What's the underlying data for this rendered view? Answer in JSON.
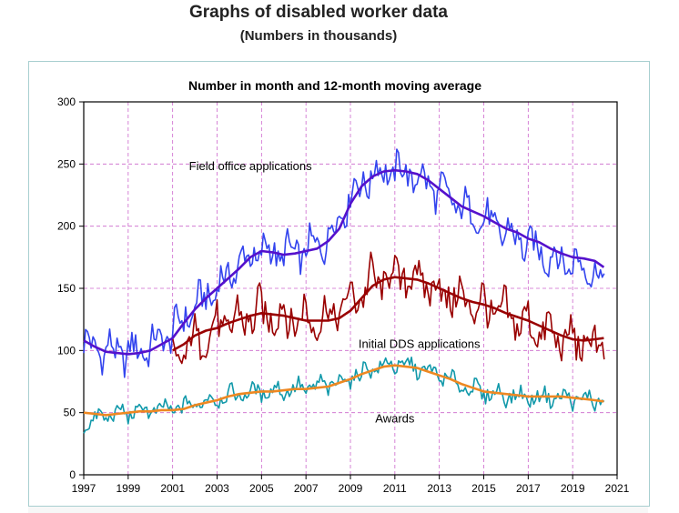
{
  "page": {
    "title": "Graphs of disabled worker data",
    "subtitle": "(Numbers in thousands)"
  },
  "chart_data": {
    "type": "line",
    "title": "Number in month and 12-month moving average",
    "xlabel": "",
    "ylabel": "",
    "xlim": [
      1997,
      2021
    ],
    "ylim": [
      0,
      300
    ],
    "x_ticks": [
      "1997",
      "1999",
      "2001",
      "2003",
      "2005",
      "2007",
      "2009",
      "2011",
      "2013",
      "2015",
      "2017",
      "2019",
      "2021"
    ],
    "y_ticks": [
      "0",
      "50",
      "100",
      "150",
      "200",
      "250",
      "300"
    ],
    "grid": true,
    "grid_color": "#cc66cc",
    "annotations": [
      {
        "text": "Field office applications",
        "x": 2004.5,
        "y": 245
      },
      {
        "text": "Initial DDS applications",
        "x": 2012.1,
        "y": 102
      },
      {
        "text": "Awards",
        "x": 2011.0,
        "y": 42
      }
    ],
    "series": [
      {
        "label": "Field office applications (monthly)",
        "color": "#3344ee",
        "style": "monthly",
        "x": [
          1997.0,
          1998.0,
          1999.0,
          2000.0,
          2001.0,
          2002.0,
          2003.0,
          2004.0,
          2005.0,
          2006.0,
          2007.0,
          2008.0,
          2009.0,
          2010.0,
          2011.0,
          2012.0,
          2013.0,
          2014.0,
          2015.0,
          2016.0,
          2017.0,
          2018.0,
          2019.0,
          2020.0,
          2020.4
        ],
        "y": [
          105,
          100,
          98,
          103,
          115,
          135,
          150,
          170,
          180,
          178,
          180,
          190,
          225,
          242,
          245,
          240,
          228,
          215,
          205,
          195,
          185,
          175,
          170,
          165,
          150
        ],
        "amplitude": 14
      },
      {
        "label": "Field office applications (12-month moving average)",
        "color": "#5511cc",
        "style": "average",
        "x": [
          1997.0,
          1997.5,
          1998.0,
          1998.5,
          1999.0,
          1999.5,
          2000.0,
          2000.5,
          2001.0,
          2001.5,
          2002.0,
          2002.5,
          2003.0,
          2003.5,
          2004.0,
          2004.5,
          2005.0,
          2005.5,
          2006.0,
          2006.5,
          2007.0,
          2007.5,
          2008.0,
          2008.5,
          2009.0,
          2009.5,
          2010.0,
          2010.5,
          2011.0,
          2011.5,
          2012.0,
          2012.5,
          2013.0,
          2013.5,
          2014.0,
          2014.5,
          2015.0,
          2015.5,
          2016.0,
          2016.5,
          2017.0,
          2017.5,
          2018.0,
          2018.5,
          2019.0,
          2019.5,
          2020.0,
          2020.4
        ],
        "y": [
          108,
          103,
          99,
          98,
          97,
          98,
          100,
          105,
          110,
          122,
          133,
          142,
          150,
          158,
          166,
          175,
          180,
          179,
          177,
          178,
          180,
          182,
          188,
          198,
          218,
          232,
          240,
          244,
          245,
          244,
          242,
          237,
          230,
          223,
          216,
          212,
          208,
          203,
          198,
          195,
          190,
          187,
          182,
          178,
          175,
          174,
          172,
          167
        ]
      },
      {
        "label": "Initial DDS applications (monthly)",
        "color": "#990000",
        "style": "monthly",
        "x": [
          2001.0,
          2002.0,
          2003.0,
          2004.0,
          2005.0,
          2006.0,
          2007.0,
          2008.0,
          2009.0,
          2010.0,
          2011.0,
          2012.0,
          2013.0,
          2014.0,
          2015.0,
          2016.0,
          2017.0,
          2018.0,
          2019.0,
          2020.0,
          2020.4
        ],
        "y": [
          90,
          108,
          118,
          125,
          130,
          127,
          125,
          127,
          140,
          155,
          160,
          158,
          148,
          140,
          135,
          128,
          120,
          113,
          107,
          105,
          102
        ],
        "amplitude": 17
      },
      {
        "label": "Initial DDS applications (12-month moving average)",
        "color": "#990000",
        "style": "average",
        "x": [
          2001.0,
          2001.5,
          2002.0,
          2002.5,
          2003.0,
          2003.5,
          2004.0,
          2004.5,
          2005.0,
          2005.5,
          2006.0,
          2006.5,
          2007.0,
          2007.5,
          2008.0,
          2008.5,
          2009.0,
          2009.5,
          2010.0,
          2010.5,
          2011.0,
          2011.5,
          2012.0,
          2012.5,
          2013.0,
          2013.5,
          2014.0,
          2014.5,
          2015.0,
          2015.5,
          2016.0,
          2016.5,
          2017.0,
          2017.5,
          2018.0,
          2018.5,
          2019.0,
          2019.5,
          2020.0,
          2020.4
        ],
        "y": [
          100,
          105,
          112,
          116,
          118,
          122,
          125,
          128,
          130,
          129,
          128,
          126,
          124,
          124,
          124,
          126,
          132,
          142,
          152,
          157,
          159,
          158,
          157,
          154,
          150,
          146,
          142,
          139,
          137,
          134,
          130,
          127,
          124,
          120,
          116,
          112,
          109,
          108,
          109,
          110
        ]
      },
      {
        "label": "Awards (monthly)",
        "color": "#1199aa",
        "style": "monthly",
        "x": [
          1997.0,
          1998.0,
          1999.0,
          2000.0,
          2001.0,
          2002.0,
          2003.0,
          2004.0,
          2005.0,
          2006.0,
          2007.0,
          2008.0,
          2009.0,
          2010.0,
          2011.0,
          2012.0,
          2013.0,
          2014.0,
          2015.0,
          2016.0,
          2017.0,
          2018.0,
          2019.0,
          2020.0,
          2020.4
        ],
        "y": [
          40,
          48,
          50,
          52,
          53,
          57,
          62,
          65,
          67,
          68,
          70,
          72,
          78,
          86,
          89,
          86,
          80,
          72,
          66,
          64,
          62,
          63,
          61,
          60,
          60
        ],
        "amplitude": 7
      },
      {
        "label": "Awards (12-month moving average)",
        "color": "#ee8822",
        "style": "average",
        "x": [
          1997.0,
          1997.5,
          1998.0,
          1998.5,
          1999.0,
          1999.5,
          2000.0,
          2000.5,
          2001.0,
          2001.5,
          2002.0,
          2002.5,
          2003.0,
          2003.5,
          2004.0,
          2004.5,
          2005.0,
          2005.5,
          2006.0,
          2006.5,
          2007.0,
          2007.5,
          2008.0,
          2008.5,
          2009.0,
          2009.5,
          2010.0,
          2010.5,
          2011.0,
          2011.5,
          2012.0,
          2012.5,
          2013.0,
          2013.5,
          2014.0,
          2014.5,
          2015.0,
          2015.5,
          2016.0,
          2016.5,
          2017.0,
          2017.5,
          2018.0,
          2018.5,
          2019.0,
          2019.5,
          2020.0,
          2020.4
        ],
        "y": [
          50,
          49,
          48,
          49,
          50,
          51,
          51,
          52,
          52,
          53,
          56,
          58,
          60,
          63,
          65,
          66,
          67,
          67,
          68,
          69,
          69,
          70,
          71,
          74,
          77,
          81,
          84,
          87,
          88,
          87,
          86,
          83,
          80,
          77,
          73,
          70,
          67,
          66,
          65,
          64,
          63,
          63,
          63,
          63,
          62,
          61,
          60,
          59
        ]
      }
    ]
  }
}
